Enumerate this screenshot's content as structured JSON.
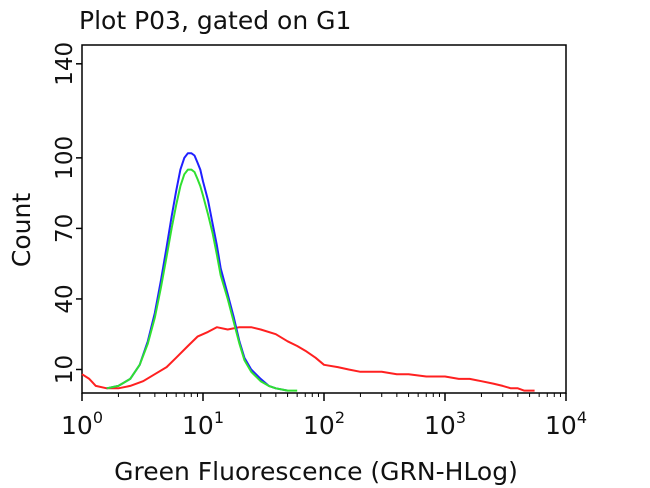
{
  "chart_data": {
    "type": "line",
    "title": "Plot P03, gated on G1",
    "xlabel": "Green Fluorescence (GRN-HLog)",
    "ylabel": "Count",
    "x_scale": "log",
    "xlim": [
      1,
      10000
    ],
    "ylim": [
      0,
      148
    ],
    "x_ticks": [
      {
        "value": 1,
        "base": "10",
        "exp": "0"
      },
      {
        "value": 10,
        "base": "10",
        "exp": "1"
      },
      {
        "value": 100,
        "base": "10",
        "exp": "2"
      },
      {
        "value": 1000,
        "base": "10",
        "exp": "3"
      },
      {
        "value": 10000,
        "base": "10",
        "exp": "4"
      }
    ],
    "y_ticks": [
      {
        "value": 10,
        "label": "10"
      },
      {
        "value": 40,
        "label": "40"
      },
      {
        "value": 70,
        "label": "70"
      },
      {
        "value": 100,
        "label": "100"
      },
      {
        "value": 140,
        "label": "140"
      }
    ],
    "series": [
      {
        "color": "#ff2020",
        "x": [
          1,
          1.15,
          1.3,
          1.6,
          2.0,
          2.5,
          3.2,
          4.0,
          5.0,
          6.0,
          7.5,
          9.0,
          11,
          13,
          16,
          20,
          25,
          30,
          40,
          50,
          60,
          70,
          85,
          100,
          130,
          160,
          200,
          300,
          400,
          500,
          700,
          1000,
          1300,
          1600,
          2000,
          2500,
          3000,
          3500,
          4000,
          4500,
          5500
        ],
        "y": [
          8,
          6,
          3,
          2,
          2,
          3,
          5,
          8,
          11,
          15,
          20,
          24,
          26,
          28,
          27,
          28,
          28,
          27,
          25,
          22,
          20,
          18,
          15,
          12,
          11,
          10,
          9,
          9,
          8,
          8,
          7,
          7,
          6,
          6,
          5,
          4,
          3,
          2,
          2,
          1,
          1
        ]
      },
      {
        "color": "#2020ff",
        "x": [
          1.6,
          2.0,
          2.5,
          3.0,
          3.5,
          4.0,
          4.5,
          5.0,
          5.5,
          6.0,
          6.5,
          7.0,
          7.5,
          8.0,
          8.5,
          9.0,
          9.5,
          10,
          11,
          12,
          13,
          14,
          16,
          18,
          20,
          22,
          25,
          30,
          35,
          40,
          50
        ],
        "y": [
          2,
          3,
          6,
          12,
          22,
          34,
          48,
          62,
          75,
          86,
          95,
          100,
          102,
          102,
          101,
          98,
          95,
          90,
          82,
          72,
          63,
          53,
          42,
          32,
          22,
          15,
          10,
          6,
          3,
          2,
          1
        ]
      },
      {
        "color": "#30e030",
        "x": [
          1.6,
          2.0,
          2.5,
          3.0,
          3.5,
          4.0,
          4.5,
          5.0,
          5.5,
          6.0,
          6.5,
          7.0,
          7.5,
          8.0,
          8.5,
          9.0,
          9.5,
          10,
          11,
          12,
          13,
          14,
          16,
          18,
          20,
          22,
          25,
          30,
          35,
          40,
          50,
          60
        ],
        "y": [
          2,
          3,
          6,
          12,
          21,
          32,
          45,
          58,
          70,
          80,
          88,
          93,
          95,
          95,
          94,
          91,
          88,
          84,
          76,
          68,
          59,
          50,
          40,
          30,
          21,
          14,
          9,
          5,
          3,
          2,
          1,
          1
        ]
      }
    ]
  }
}
